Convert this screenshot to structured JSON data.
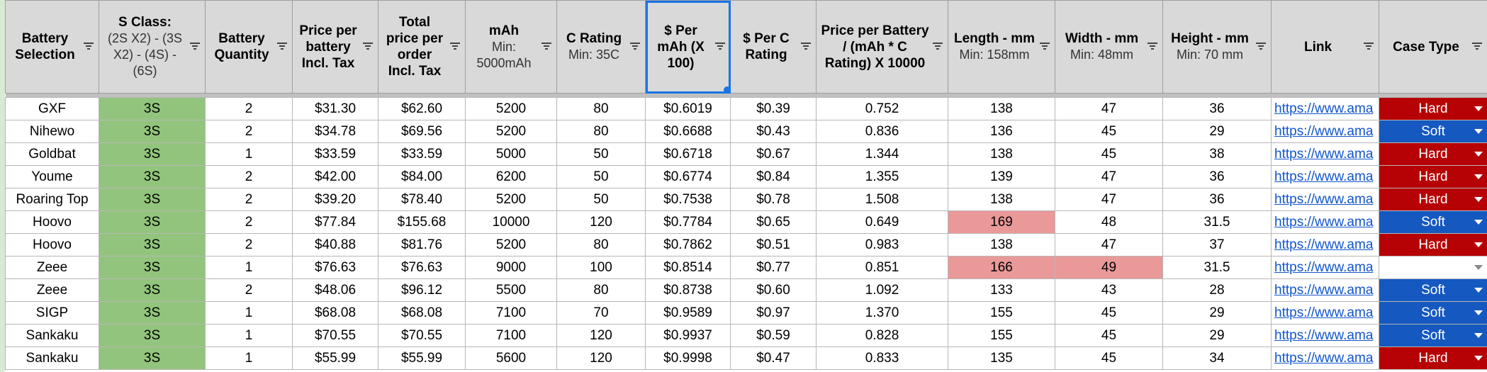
{
  "table": {
    "headers": [
      {
        "title": "Battery Selection"
      },
      {
        "title": "S Class:",
        "subtitle": "(2S X2) - (3S X2) - (4S) - (6S)"
      },
      {
        "title": "Battery Quantity"
      },
      {
        "title": "Price per battery Incl. Tax"
      },
      {
        "title": "Total price per order Incl. Tax"
      },
      {
        "title": "mAh",
        "subtitle": "Min: 5000mAh"
      },
      {
        "title": "C Rating",
        "subtitle": "Min: 35C"
      },
      {
        "title": "$ Per mAh (X 100)"
      },
      {
        "title": "$ Per C Rating"
      },
      {
        "title": "Price per Battery / (mAh * C Rating) X 10000"
      },
      {
        "title": "Length - mm",
        "subtitle": "Min: 158mm"
      },
      {
        "title": "Width - mm",
        "subtitle": "Min: 48mm"
      },
      {
        "title": "Height - mm",
        "subtitle": "Min: 70 mm"
      },
      {
        "title": "Link"
      },
      {
        "title": "Case Type"
      }
    ],
    "rows": [
      [
        "GXF",
        "3S",
        "2",
        "$31.30",
        "$62.60",
        "5200",
        "80",
        "$0.6019",
        "$0.39",
        "0.752",
        "138",
        "47",
        "36",
        "https://www.ama",
        "Hard"
      ],
      [
        "Nihewo",
        "3S",
        "2",
        "$34.78",
        "$69.56",
        "5200",
        "80",
        "$0.6688",
        "$0.43",
        "0.836",
        "136",
        "45",
        "29",
        "https://www.ama",
        "Soft"
      ],
      [
        "Goldbat",
        "3S",
        "1",
        "$33.59",
        "$33.59",
        "5000",
        "50",
        "$0.6718",
        "$0.67",
        "1.344",
        "138",
        "45",
        "38",
        "https://www.ama",
        "Hard"
      ],
      [
        "Youme",
        "3S",
        "2",
        "$42.00",
        "$84.00",
        "6200",
        "50",
        "$0.6774",
        "$0.84",
        "1.355",
        "139",
        "47",
        "36",
        "https://www.ama",
        "Hard"
      ],
      [
        "Roaring Top",
        "3S",
        "2",
        "$39.20",
        "$78.40",
        "5200",
        "50",
        "$0.7538",
        "$0.78",
        "1.508",
        "138",
        "47",
        "36",
        "https://www.ama",
        "Hard"
      ],
      [
        "Hoovo",
        "3S",
        "2",
        "$77.84",
        "$155.68",
        "10000",
        "120",
        "$0.7784",
        "$0.65",
        "0.649",
        "169",
        "48",
        "31.5",
        "https://www.ama",
        "Soft"
      ],
      [
        "Hoovo",
        "3S",
        "2",
        "$40.88",
        "$81.76",
        "5200",
        "80",
        "$0.7862",
        "$0.51",
        "0.983",
        "138",
        "47",
        "37",
        "https://www.ama",
        "Hard"
      ],
      [
        "Zeee",
        "3S",
        "1",
        "$76.63",
        "$76.63",
        "9000",
        "100",
        "$0.8514",
        "$0.77",
        "0.851",
        "166",
        "49",
        "31.5",
        "https://www.ama",
        null
      ],
      [
        "Zeee",
        "3S",
        "2",
        "$48.06",
        "$96.12",
        "5500",
        "80",
        "$0.8738",
        "$0.60",
        "1.092",
        "133",
        "43",
        "28",
        "https://www.ama",
        "Soft"
      ],
      [
        "SIGP",
        "3S",
        "1",
        "$68.08",
        "$68.08",
        "7100",
        "70",
        "$0.9589",
        "$0.97",
        "1.370",
        "155",
        "45",
        "29",
        "https://www.ama",
        "Soft"
      ],
      [
        "Sankaku",
        "3S",
        "1",
        "$70.55",
        "$70.55",
        "7100",
        "120",
        "$0.9937",
        "$0.59",
        "0.828",
        "155",
        "45",
        "29",
        "https://www.ama",
        "Soft"
      ],
      [
        "Sankaku",
        "3S",
        "1",
        "$55.99",
        "$55.99",
        "5600",
        "120",
        "$0.9998",
        "$0.47",
        "0.833",
        "135",
        "45",
        "34",
        "https://www.ama",
        "Hard"
      ]
    ]
  }
}
